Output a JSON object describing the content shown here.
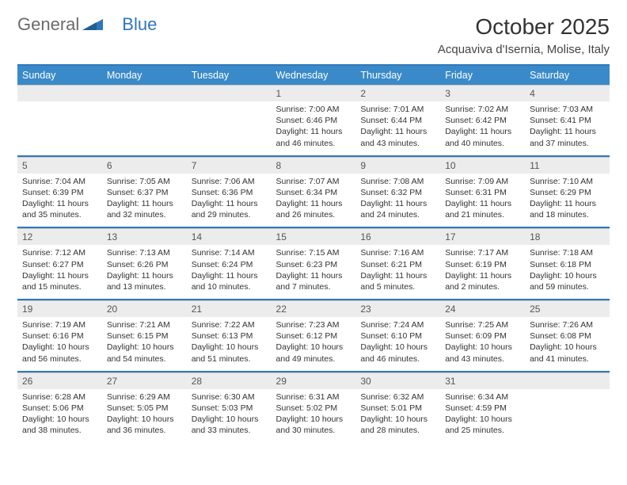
{
  "brand": {
    "part1": "General",
    "part2": "Blue"
  },
  "colors": {
    "accent": "#3a8ac9",
    "rule": "#2f77bb",
    "daynum_bg": "#ececec"
  },
  "title": "October 2025",
  "subtitle": "Acquaviva d'Isernia, Molise, Italy",
  "weekdays": [
    "Sunday",
    "Monday",
    "Tuesday",
    "Wednesday",
    "Thursday",
    "Friday",
    "Saturday"
  ],
  "weeks": [
    [
      {
        "n": "",
        "sr": "",
        "ss": "",
        "d": ""
      },
      {
        "n": "",
        "sr": "",
        "ss": "",
        "d": ""
      },
      {
        "n": "",
        "sr": "",
        "ss": "",
        "d": ""
      },
      {
        "n": "1",
        "sr": "7:00 AM",
        "ss": "6:46 PM",
        "d": "11 hours and 46 minutes."
      },
      {
        "n": "2",
        "sr": "7:01 AM",
        "ss": "6:44 PM",
        "d": "11 hours and 43 minutes."
      },
      {
        "n": "3",
        "sr": "7:02 AM",
        "ss": "6:42 PM",
        "d": "11 hours and 40 minutes."
      },
      {
        "n": "4",
        "sr": "7:03 AM",
        "ss": "6:41 PM",
        "d": "11 hours and 37 minutes."
      }
    ],
    [
      {
        "n": "5",
        "sr": "7:04 AM",
        "ss": "6:39 PM",
        "d": "11 hours and 35 minutes."
      },
      {
        "n": "6",
        "sr": "7:05 AM",
        "ss": "6:37 PM",
        "d": "11 hours and 32 minutes."
      },
      {
        "n": "7",
        "sr": "7:06 AM",
        "ss": "6:36 PM",
        "d": "11 hours and 29 minutes."
      },
      {
        "n": "8",
        "sr": "7:07 AM",
        "ss": "6:34 PM",
        "d": "11 hours and 26 minutes."
      },
      {
        "n": "9",
        "sr": "7:08 AM",
        "ss": "6:32 PM",
        "d": "11 hours and 24 minutes."
      },
      {
        "n": "10",
        "sr": "7:09 AM",
        "ss": "6:31 PM",
        "d": "11 hours and 21 minutes."
      },
      {
        "n": "11",
        "sr": "7:10 AM",
        "ss": "6:29 PM",
        "d": "11 hours and 18 minutes."
      }
    ],
    [
      {
        "n": "12",
        "sr": "7:12 AM",
        "ss": "6:27 PM",
        "d": "11 hours and 15 minutes."
      },
      {
        "n": "13",
        "sr": "7:13 AM",
        "ss": "6:26 PM",
        "d": "11 hours and 13 minutes."
      },
      {
        "n": "14",
        "sr": "7:14 AM",
        "ss": "6:24 PM",
        "d": "11 hours and 10 minutes."
      },
      {
        "n": "15",
        "sr": "7:15 AM",
        "ss": "6:23 PM",
        "d": "11 hours and 7 minutes."
      },
      {
        "n": "16",
        "sr": "7:16 AM",
        "ss": "6:21 PM",
        "d": "11 hours and 5 minutes."
      },
      {
        "n": "17",
        "sr": "7:17 AM",
        "ss": "6:19 PM",
        "d": "11 hours and 2 minutes."
      },
      {
        "n": "18",
        "sr": "7:18 AM",
        "ss": "6:18 PM",
        "d": "10 hours and 59 minutes."
      }
    ],
    [
      {
        "n": "19",
        "sr": "7:19 AM",
        "ss": "6:16 PM",
        "d": "10 hours and 56 minutes."
      },
      {
        "n": "20",
        "sr": "7:21 AM",
        "ss": "6:15 PM",
        "d": "10 hours and 54 minutes."
      },
      {
        "n": "21",
        "sr": "7:22 AM",
        "ss": "6:13 PM",
        "d": "10 hours and 51 minutes."
      },
      {
        "n": "22",
        "sr": "7:23 AM",
        "ss": "6:12 PM",
        "d": "10 hours and 49 minutes."
      },
      {
        "n": "23",
        "sr": "7:24 AM",
        "ss": "6:10 PM",
        "d": "10 hours and 46 minutes."
      },
      {
        "n": "24",
        "sr": "7:25 AM",
        "ss": "6:09 PM",
        "d": "10 hours and 43 minutes."
      },
      {
        "n": "25",
        "sr": "7:26 AM",
        "ss": "6:08 PM",
        "d": "10 hours and 41 minutes."
      }
    ],
    [
      {
        "n": "26",
        "sr": "6:28 AM",
        "ss": "5:06 PM",
        "d": "10 hours and 38 minutes."
      },
      {
        "n": "27",
        "sr": "6:29 AM",
        "ss": "5:05 PM",
        "d": "10 hours and 36 minutes."
      },
      {
        "n": "28",
        "sr": "6:30 AM",
        "ss": "5:03 PM",
        "d": "10 hours and 33 minutes."
      },
      {
        "n": "29",
        "sr": "6:31 AM",
        "ss": "5:02 PM",
        "d": "10 hours and 30 minutes."
      },
      {
        "n": "30",
        "sr": "6:32 AM",
        "ss": "5:01 PM",
        "d": "10 hours and 28 minutes."
      },
      {
        "n": "31",
        "sr": "6:34 AM",
        "ss": "4:59 PM",
        "d": "10 hours and 25 minutes."
      },
      {
        "n": "",
        "sr": "",
        "ss": "",
        "d": ""
      }
    ]
  ],
  "labels": {
    "sunrise": "Sunrise:",
    "sunset": "Sunset:",
    "daylight": "Daylight:"
  }
}
